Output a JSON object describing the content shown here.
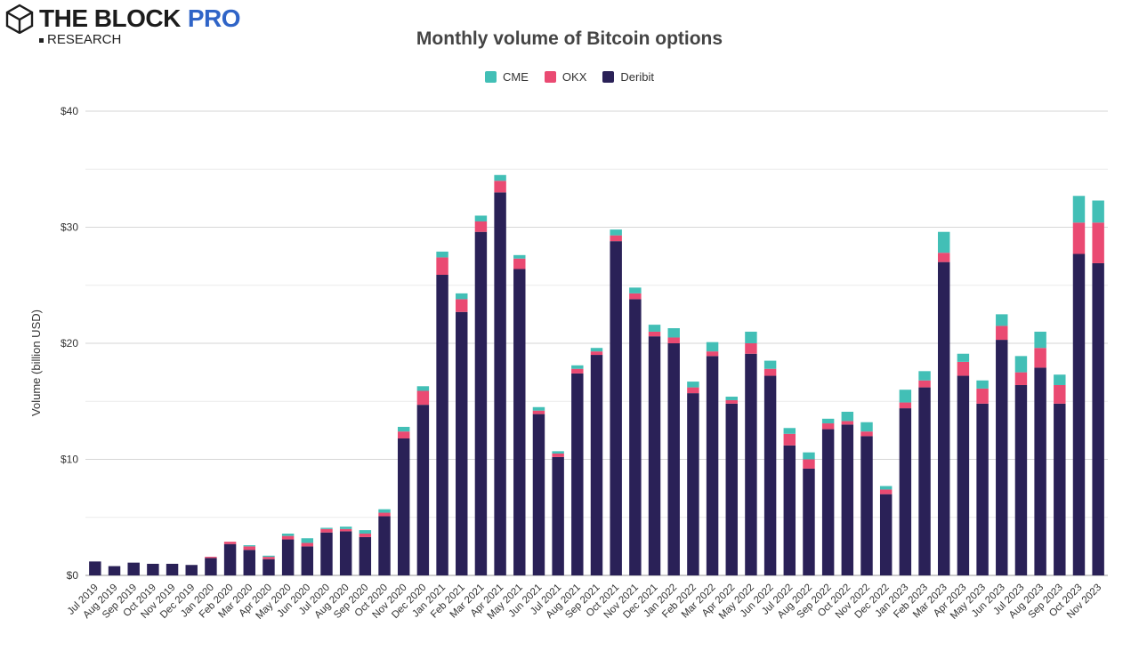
{
  "brand": {
    "name": "THE BLOCK",
    "pro": "PRO",
    "sub": "RESEARCH"
  },
  "chart_data": {
    "type": "bar",
    "stacked": true,
    "title": "Monthly volume of Bitcoin options",
    "xlabel": "",
    "ylabel": "Volume (billion USD)",
    "ylim": [
      0,
      40
    ],
    "yticks": [
      "$0",
      "$10",
      "$20",
      "$30",
      "$40"
    ],
    "ytick_values": [
      0,
      10,
      20,
      30,
      40
    ],
    "grid": true,
    "legend_position": "top-center",
    "categories": [
      "Jul 2019",
      "Aug 2019",
      "Sep 2019",
      "Oct 2019",
      "Nov 2019",
      "Dec 2019",
      "Jan 2020",
      "Feb 2020",
      "Mar 2020",
      "Apr 2020",
      "May 2020",
      "Jun 2020",
      "Jul 2020",
      "Aug 2020",
      "Sep 2020",
      "Oct 2020",
      "Nov 2020",
      "Dec 2020",
      "Jan 2021",
      "Feb 2021",
      "Mar 2021",
      "Apr 2021",
      "May 2021",
      "Jun 2021",
      "Jul 2021",
      "Aug 2021",
      "Sep 2021",
      "Oct 2021",
      "Nov 2021",
      "Dec 2021",
      "Jan 2022",
      "Feb 2022",
      "Mar 2022",
      "Apr 2022",
      "May 2022",
      "Jun 2022",
      "Jul 2022",
      "Aug 2022",
      "Sep 2022",
      "Oct 2022",
      "Nov 2022",
      "Dec 2022",
      "Jan 2023",
      "Feb 2023",
      "Mar 2023",
      "Apr 2023",
      "May 2023",
      "Jun 2023",
      "Jul 2023",
      "Aug 2023",
      "Sep 2023",
      "Oct 2023",
      "Nov 2023"
    ],
    "series": [
      {
        "name": "Deribit",
        "color": "#2a2157",
        "values": [
          1.2,
          0.8,
          1.1,
          1.0,
          1.0,
          0.9,
          1.5,
          2.7,
          2.2,
          1.4,
          3.1,
          2.5,
          3.7,
          3.8,
          3.3,
          5.1,
          11.8,
          14.7,
          25.9,
          22.7,
          29.6,
          33.0,
          26.4,
          13.9,
          10.2,
          17.4,
          19.0,
          28.8,
          23.8,
          20.6,
          20.0,
          15.7,
          18.9,
          14.8,
          19.1,
          17.2,
          11.2,
          9.2,
          12.6,
          13.0,
          12.0,
          7.0,
          14.4,
          16.2,
          27.0,
          17.2,
          14.8,
          20.3,
          16.4,
          17.9,
          14.8,
          27.7,
          26.9
        ]
      },
      {
        "name": "OKX",
        "color": "#ea4a72",
        "values": [
          0,
          0,
          0,
          0,
          0,
          0,
          0.1,
          0.2,
          0.3,
          0.2,
          0.3,
          0.3,
          0.3,
          0.2,
          0.3,
          0.3,
          0.6,
          1.2,
          1.5,
          1.1,
          0.9,
          1.0,
          0.9,
          0.3,
          0.3,
          0.4,
          0.3,
          0.5,
          0.5,
          0.4,
          0.5,
          0.5,
          0.4,
          0.3,
          0.9,
          0.6,
          1.0,
          0.8,
          0.5,
          0.3,
          0.4,
          0.4,
          0.5,
          0.6,
          0.8,
          1.2,
          1.3,
          1.2,
          1.1,
          1.7,
          1.6,
          2.7,
          3.5
        ]
      },
      {
        "name": "CME",
        "color": "#42bfb6",
        "values": [
          0,
          0,
          0,
          0,
          0,
          0,
          0,
          0,
          0.1,
          0.1,
          0.2,
          0.4,
          0.1,
          0.2,
          0.3,
          0.3,
          0.4,
          0.4,
          0.5,
          0.5,
          0.5,
          0.5,
          0.3,
          0.3,
          0.2,
          0.3,
          0.3,
          0.5,
          0.5,
          0.6,
          0.8,
          0.5,
          0.8,
          0.3,
          1.0,
          0.7,
          0.5,
          0.6,
          0.4,
          0.8,
          0.8,
          0.3,
          1.1,
          0.8,
          1.8,
          0.7,
          0.7,
          1.0,
          1.4,
          1.4,
          0.9,
          2.3,
          1.9
        ]
      }
    ]
  }
}
